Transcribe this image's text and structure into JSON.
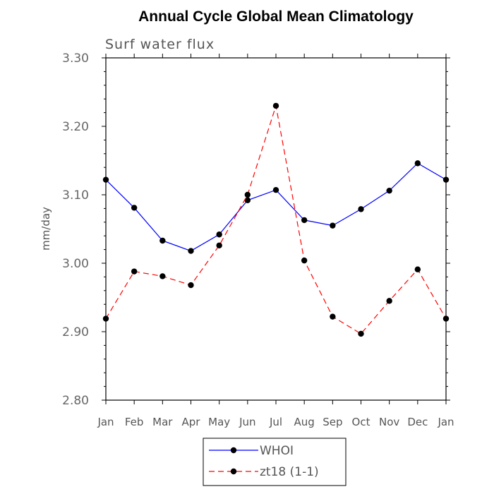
{
  "chart_data": {
    "type": "line",
    "title": "Annual Cycle Global Mean Climatology",
    "subtitle": "Surf water flux",
    "xlabel": "",
    "ylabel": "mm/day",
    "categories": [
      "Jan",
      "Feb",
      "Mar",
      "Apr",
      "May",
      "Jun",
      "Jul",
      "Aug",
      "Sep",
      "Oct",
      "Nov",
      "Dec",
      "Jan"
    ],
    "ylim": [
      2.8,
      3.3
    ],
    "yticks": [
      2.8,
      2.9,
      3.0,
      3.1,
      3.2,
      3.3
    ],
    "ytick_labels": [
      "2.80",
      "2.90",
      "3.00",
      "3.10",
      "3.20",
      "3.30"
    ],
    "grid": false,
    "legend_position": "bottom",
    "series": [
      {
        "name": "WHOI",
        "color": "#0000ff",
        "line_style": "solid",
        "marker": "filled-circle",
        "values": [
          3.122,
          3.081,
          3.033,
          3.018,
          3.042,
          3.092,
          3.107,
          3.063,
          3.055,
          3.079,
          3.106,
          3.146,
          3.122
        ]
      },
      {
        "name": "zt18 (1-1)",
        "color": "#ff0000",
        "line_style": "dashed",
        "marker": "filled-circle",
        "values": [
          2.919,
          2.988,
          2.981,
          2.968,
          3.026,
          3.1,
          3.23,
          3.004,
          2.922,
          2.897,
          2.945,
          2.991,
          2.919
        ]
      }
    ]
  }
}
